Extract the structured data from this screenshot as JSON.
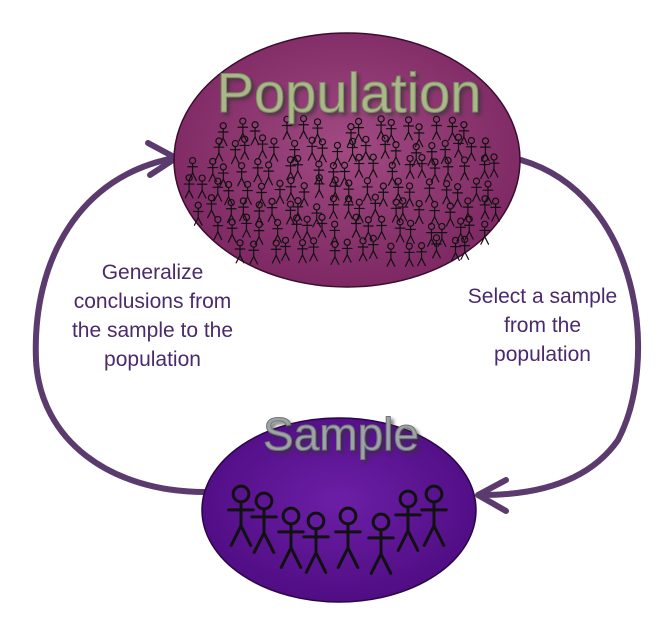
{
  "population": {
    "title": "Population",
    "fill": "#8e2f6c",
    "title_color": "#a8b887"
  },
  "sample": {
    "title": "Sample",
    "fill": "#5c0f93",
    "title_color": "#9ea4a6"
  },
  "arrows": {
    "color": "#5b3a6e"
  },
  "left_label": {
    "lines": [
      "Generalize",
      "conclusions from",
      "the sample to the",
      "population"
    ]
  },
  "right_label": {
    "lines": [
      "Select a sample",
      "from the",
      "population"
    ]
  }
}
